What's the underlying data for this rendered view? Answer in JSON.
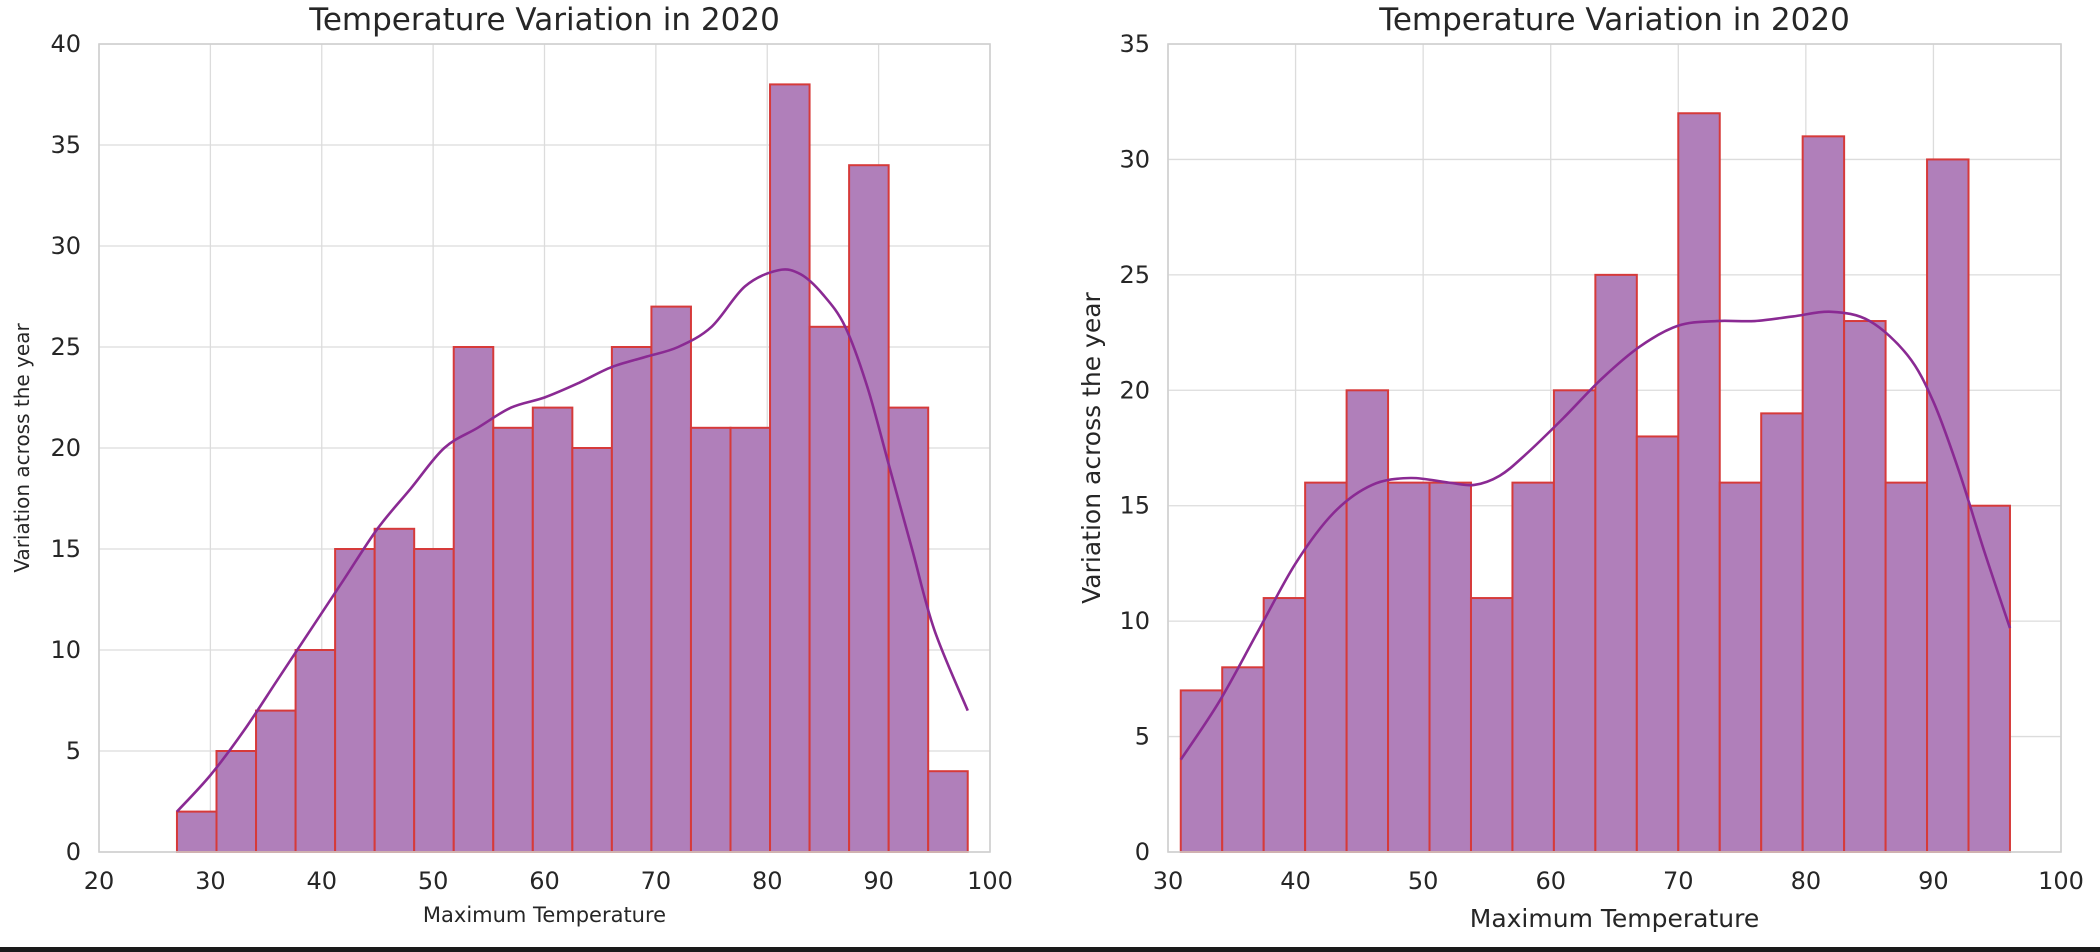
{
  "chart_data": [
    {
      "type": "bar",
      "title": "Temperature Variation in 2020",
      "xlabel": "Maximum Temperature",
      "ylabel": "Variation across the year",
      "xlim": [
        20,
        100
      ],
      "ylim": [
        0,
        40
      ],
      "xticks": [
        20,
        30,
        40,
        50,
        60,
        70,
        80,
        90,
        100
      ],
      "yticks": [
        0,
        5,
        10,
        15,
        20,
        25,
        30,
        35,
        40
      ],
      "grid": true,
      "bin_edges": [
        27.0,
        30.55,
        34.1,
        37.65,
        41.2,
        44.75,
        48.3,
        51.85,
        55.4,
        58.95,
        62.5,
        66.05,
        69.6,
        73.15,
        76.7,
        80.25,
        83.8,
        87.35,
        90.9,
        94.45,
        98.0
      ],
      "values": [
        2,
        5,
        7,
        10,
        15,
        16,
        15,
        25,
        21,
        22,
        20,
        25,
        27,
        21,
        21,
        38,
        26,
        34,
        22,
        4
      ],
      "kde": {
        "x": [
          27,
          30,
          33,
          36,
          39,
          42,
          45,
          48,
          51,
          54,
          57,
          60,
          63,
          66,
          69,
          72,
          75,
          78,
          81,
          83,
          85,
          87,
          89,
          91,
          93,
          95,
          98
        ],
        "y": [
          2,
          3.8,
          6,
          8.5,
          11,
          13.5,
          16,
          18,
          20,
          21,
          22,
          22.5,
          23.2,
          24,
          24.5,
          25,
          26,
          28,
          28.8,
          28.6,
          27.6,
          26,
          23,
          19,
          15,
          11,
          7
        ]
      },
      "colors": {
        "bar_fill": "#b07fba",
        "bar_edge": "#d63a3a",
        "kde_line": "#8a2a93"
      }
    },
    {
      "type": "bar",
      "title": "Temperature Variation in 2020",
      "xlabel": "Maximum Temperature",
      "ylabel": "Variation across the year",
      "xlim": [
        30,
        100
      ],
      "ylim": [
        0,
        35
      ],
      "xticks": [
        30,
        40,
        50,
        60,
        70,
        80,
        90,
        100
      ],
      "yticks": [
        0,
        5,
        10,
        15,
        20,
        25,
        30,
        35
      ],
      "grid": true,
      "bin_edges": [
        31.0,
        34.25,
        37.5,
        40.75,
        44.0,
        47.25,
        50.5,
        53.75,
        57.0,
        60.25,
        63.5,
        66.75,
        70.0,
        73.25,
        76.5,
        79.75,
        83.0,
        86.25,
        89.5,
        92.75,
        96.0
      ],
      "values": [
        7,
        8,
        11,
        16,
        20,
        16,
        16,
        11,
        16,
        20,
        25,
        18,
        32,
        16,
        19,
        31,
        23,
        16,
        30,
        15
      ],
      "kde": {
        "x": [
          31,
          34,
          37,
          40,
          43,
          46,
          49,
          52,
          54,
          56,
          58,
          61,
          64,
          67,
          70,
          73,
          76,
          79,
          82,
          85,
          88,
          90,
          92,
          94,
          96
        ],
        "y": [
          4,
          6.5,
          9.5,
          12.5,
          14.7,
          15.9,
          16.2,
          16.0,
          15.9,
          16.3,
          17.2,
          18.8,
          20.5,
          21.9,
          22.8,
          23.0,
          23.0,
          23.2,
          23.4,
          23.0,
          21.5,
          19.5,
          16.5,
          13,
          9.7
        ]
      },
      "colors": {
        "bar_fill": "#b07fba",
        "bar_edge": "#d63a3a",
        "kde_line": "#8a2a93"
      }
    }
  ]
}
